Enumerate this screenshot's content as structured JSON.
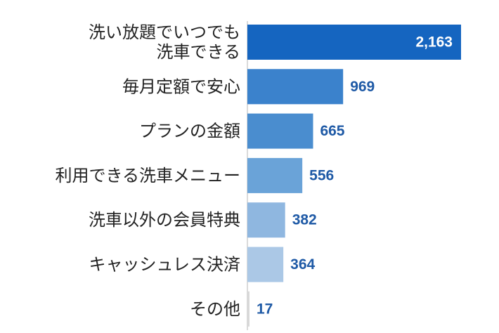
{
  "chart_data": {
    "type": "bar",
    "orientation": "horizontal",
    "title": "",
    "xlabel": "",
    "ylabel": "",
    "categories": [
      [
        "洗い放題でいつでも",
        "洗車できる"
      ],
      [
        "毎月定額で安心"
      ],
      [
        "プランの金額"
      ],
      [
        "利用できる洗車メニュー"
      ],
      [
        "洗車以外の会員特典"
      ],
      [
        "キャッシュレス決済"
      ],
      [
        "その他"
      ]
    ],
    "values": [
      2163,
      969,
      665,
      556,
      382,
      364,
      17
    ],
    "value_labels": [
      "2,163",
      "969",
      "665",
      "556",
      "382",
      "364",
      "17"
    ],
    "bar_colors": [
      "#1565c0",
      "#3b82cc",
      "#4a8dcf",
      "#6aa3d8",
      "#8fb7e0",
      "#abc8e6",
      "#d8d8d8"
    ],
    "value_label_colors": {
      "inside": "#ffffff",
      "outside": "#1f5aa6"
    },
    "grid": false,
    "legend": "none"
  }
}
